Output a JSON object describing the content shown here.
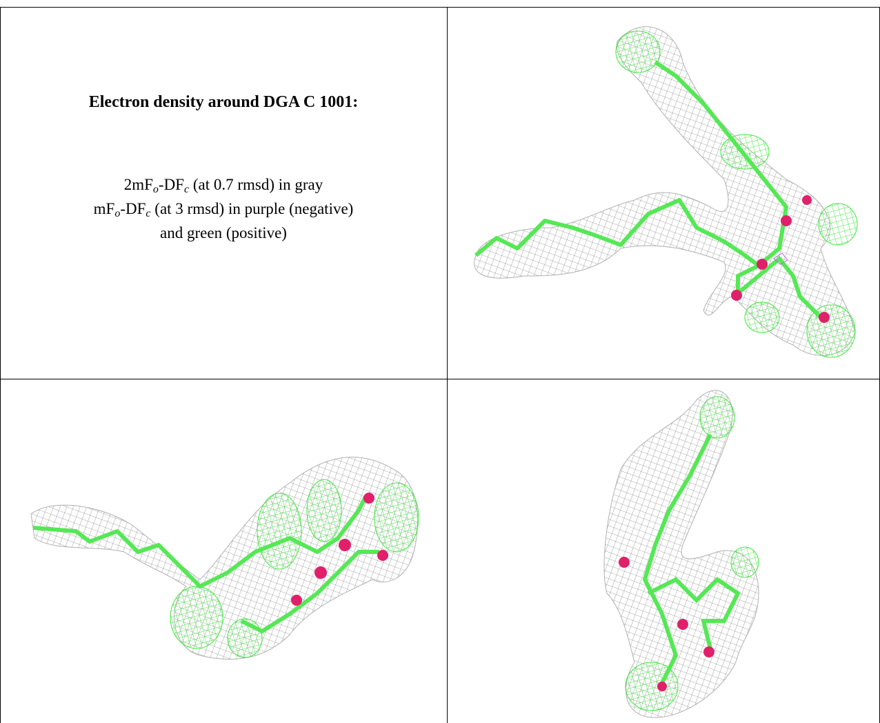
{
  "caption": {
    "title": "Electron density around DGA C 1001:",
    "lines": [
      [
        {
          "text": "2mF"
        },
        {
          "sub": "o"
        },
        {
          "text": "-DF"
        },
        {
          "sub": "c"
        },
        {
          "text": " (at 0.7 rmsd) in gray"
        }
      ],
      [
        {
          "text": "mF"
        },
        {
          "sub": "o"
        },
        {
          "text": "-DF"
        },
        {
          "sub": "c"
        },
        {
          "text": " (at 3 rmsd) in purple (negative)"
        }
      ],
      [
        {
          "text": "and green (positive)"
        }
      ]
    ]
  }
}
